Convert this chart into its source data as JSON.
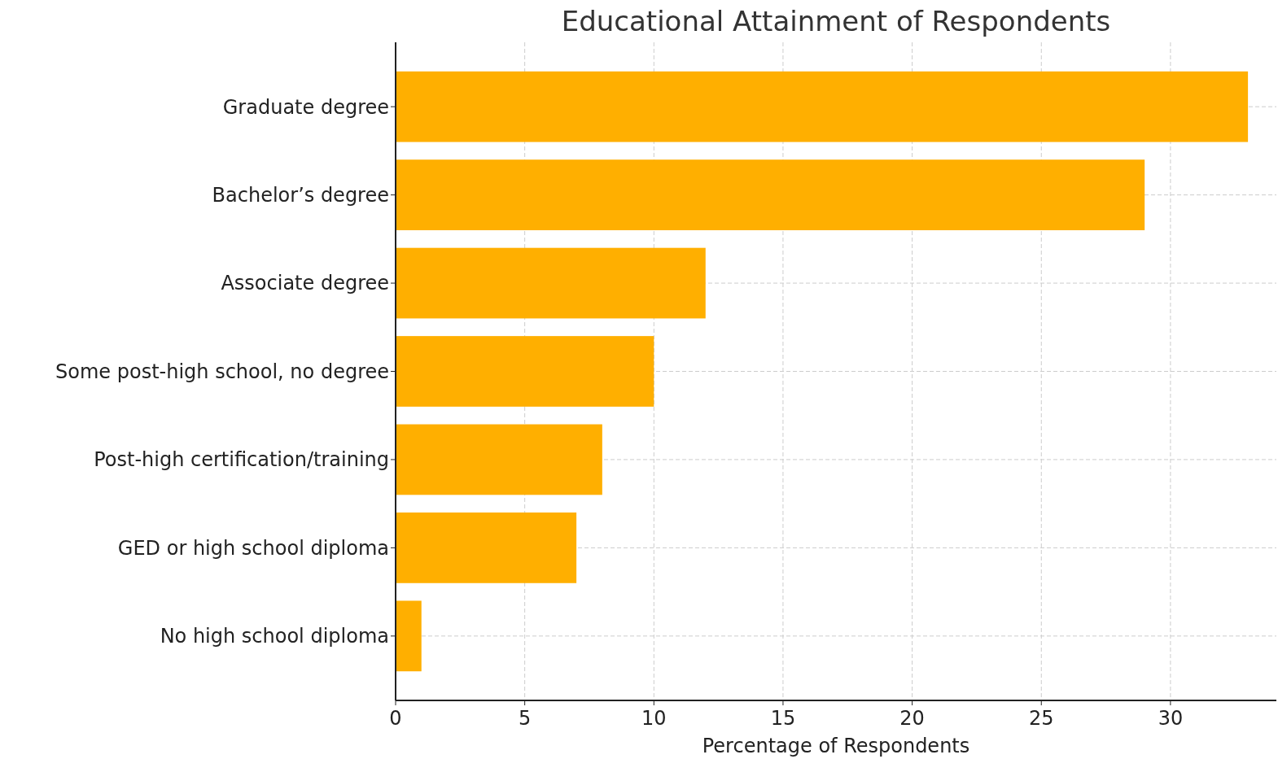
{
  "chart_data": {
    "type": "bar",
    "orientation": "horizontal",
    "title": "Educational Attainment of Respondents",
    "xlabel": "Percentage of Respondents",
    "categories": [
      "Graduate degree",
      "Bachelor’s degree",
      "Associate degree",
      "Some post-high school, no degree",
      "Post-high certification/training",
      "GED or high school diploma",
      "No high school diploma"
    ],
    "values": [
      33,
      29,
      12,
      10,
      8,
      7,
      1
    ],
    "color": "#ffaf00",
    "xlim": [
      0,
      34.1
    ],
    "xticks": [
      0,
      5,
      10,
      15,
      20,
      25,
      30
    ],
    "grid": true
  }
}
